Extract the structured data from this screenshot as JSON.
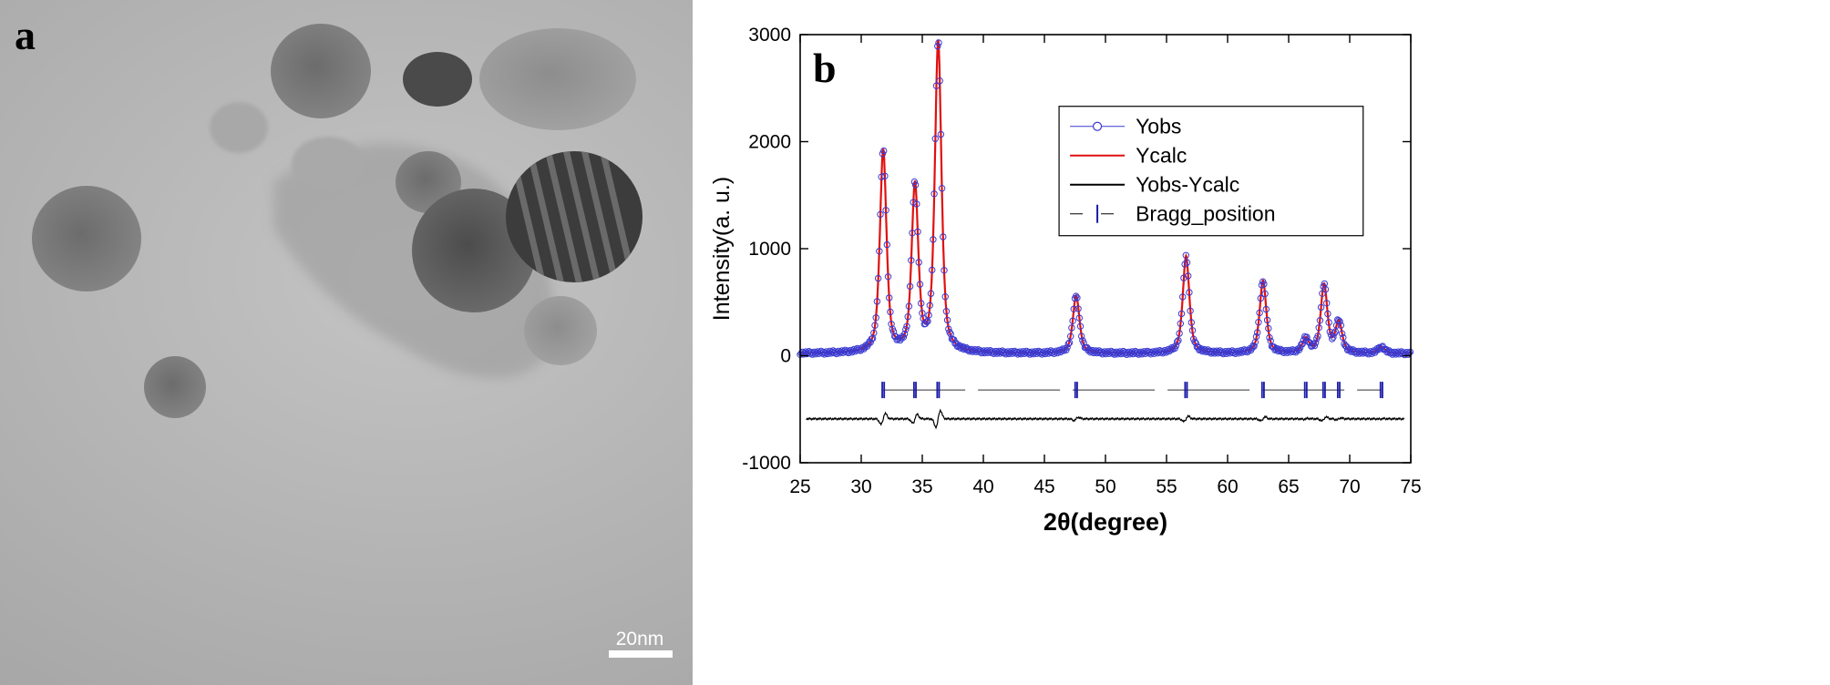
{
  "panels": {
    "a": {
      "letter": "a",
      "scale_bar_label": "20nm"
    },
    "b": {
      "letter": "b"
    }
  },
  "chart_data": {
    "type": "line",
    "xlabel": "2θ(degree)",
    "ylabel": "Intensity(a. u.)",
    "xlim": [
      25,
      75
    ],
    "ylim": [
      -1000,
      3000
    ],
    "xticks": [
      25,
      30,
      35,
      40,
      45,
      50,
      55,
      60,
      65,
      70,
      75
    ],
    "yticks": [
      -1000,
      0,
      1000,
      2000,
      3000
    ],
    "legend_position": "upper-right",
    "grid": false,
    "colors": {
      "Yobs": "#3a3ad0",
      "Ycalc": "#e01010",
      "diff": "#000000",
      "bragg": "#1a1aa8"
    },
    "series": [
      {
        "name": "Yobs",
        "style": "open-circles"
      },
      {
        "name": "Ycalc",
        "style": "line"
      },
      {
        "name": "Yobs-Ycalc",
        "style": "line"
      },
      {
        "name": "Bragg_position",
        "style": "ticks"
      }
    ],
    "baseline": 20,
    "peaks": [
      {
        "x": 31.8,
        "y": 1910
      },
      {
        "x": 34.4,
        "y": 1570
      },
      {
        "x": 36.3,
        "y": 2920
      },
      {
        "x": 47.6,
        "y": 560
      },
      {
        "x": 56.6,
        "y": 930
      },
      {
        "x": 62.9,
        "y": 700
      },
      {
        "x": 66.4,
        "y": 150
      },
      {
        "x": 67.9,
        "y": 660
      },
      {
        "x": 69.1,
        "y": 310
      },
      {
        "x": 72.6,
        "y": 80
      }
    ],
    "bragg_positions": [
      31.8,
      34.4,
      36.3,
      47.6,
      56.6,
      62.9,
      66.4,
      67.9,
      69.1,
      72.6
    ],
    "bragg_level": -320,
    "diff_level": -590
  }
}
